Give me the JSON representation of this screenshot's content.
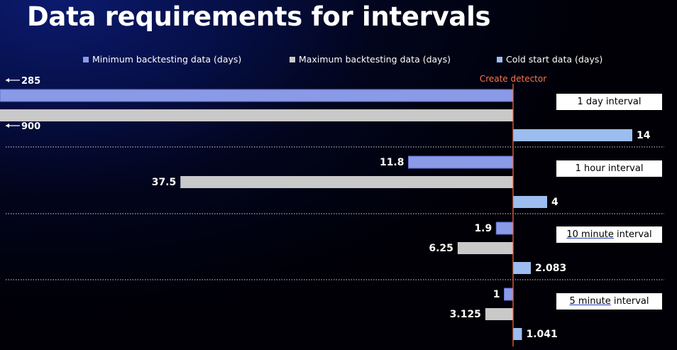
{
  "title": "Data requirements for intervals",
  "legend": [
    {
      "label": "Minimum backtesting data (days)",
      "color": "#8b9ae6"
    },
    {
      "label": "Maximum backtesting data (days)",
      "color": "#c9c9c9"
    },
    {
      "label": "Cold start data (days)",
      "color": "#9dbdf0"
    }
  ],
  "chart_data": {
    "type": "bar",
    "orientation": "horizontal",
    "reference_line": {
      "label": "Create detector",
      "value": 0,
      "color": "#ff6a3d"
    },
    "series": [
      {
        "name": "Minimum backtesting data (days)",
        "color": "#8b9ae6",
        "direction": "left",
        "values": [
          285,
          11.8,
          1.9,
          1
        ],
        "labels": [
          "285",
          "11.8",
          "1.9",
          "1"
        ]
      },
      {
        "name": "Maximum backtesting data (days)",
        "color": "#c9c9c9",
        "direction": "left",
        "values": [
          900,
          37.5,
          6.25,
          3.125
        ],
        "labels": [
          "900",
          "37.5",
          "6.25",
          "3.125"
        ]
      },
      {
        "name": "Cold start data (days)",
        "color": "#9dbdf0",
        "direction": "right",
        "values": [
          14,
          4,
          2.083,
          1.041
        ],
        "labels": [
          "14",
          "4",
          "2.083",
          "1.041"
        ]
      }
    ],
    "groups": [
      {
        "label_pre": "1 day interval",
        "label_underlined": "",
        "label_post": ""
      },
      {
        "label_pre": "1 hour interval",
        "label_underlined": "",
        "label_post": ""
      },
      {
        "label_pre": "",
        "label_underlined": "10 minute",
        "label_post": " interval"
      },
      {
        "label_pre": "",
        "label_underlined": "5 minute",
        "label_post": " interval"
      }
    ],
    "scale_left_px_per_day": 12.5,
    "scale_right_px_per_day": 12.0,
    "truncated_group": 0
  }
}
